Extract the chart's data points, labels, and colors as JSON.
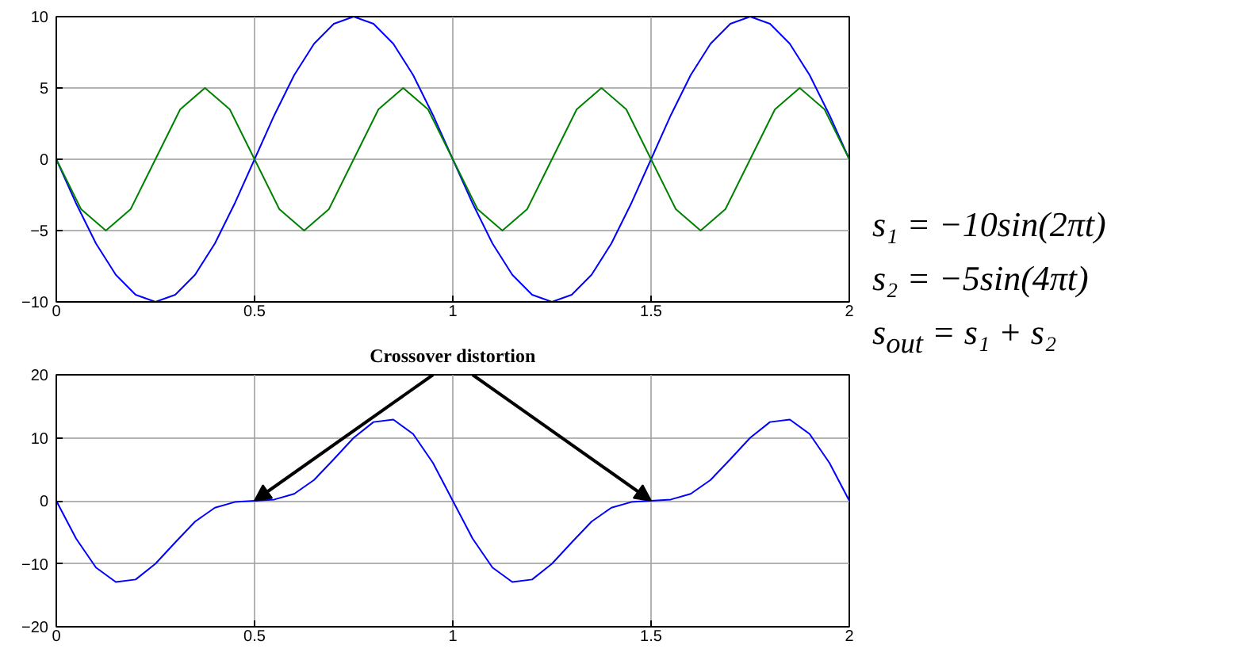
{
  "chart_data": [
    {
      "type": "line",
      "xlim": [
        0,
        2
      ],
      "xticks": [
        0,
        0.5,
        1,
        {
          "value": 1.5,
          "label": "1.5"
        },
        2
      ],
      "ylim": [
        -10,
        10
      ],
      "yticks": [
        -10,
        -5,
        0,
        5,
        10
      ],
      "grid": true,
      "series": [
        {
          "color": "#0000ff",
          "x": [
            0,
            0.05,
            0.1,
            0.15,
            0.2,
            0.25,
            0.3,
            0.35,
            0.4,
            0.45,
            0.5,
            0.55,
            0.6,
            0.65,
            0.7,
            0.75,
            0.8,
            0.85,
            0.9,
            0.95,
            1,
            1.05,
            1.1,
            1.15,
            1.2,
            1.25,
            1.3,
            1.35,
            1.4,
            1.45,
            1.5,
            1.55,
            1.6,
            1.65,
            1.7,
            1.75,
            1.8,
            1.85,
            1.9,
            1.95,
            2
          ],
          "values": [
            0,
            -3.1,
            -5.9,
            -8.1,
            -9.5,
            -10,
            -9.5,
            -8.1,
            -5.9,
            -3.1,
            0,
            3.1,
            5.9,
            8.1,
            9.5,
            10,
            9.5,
            8.1,
            5.9,
            3.1,
            0,
            -3.1,
            -5.9,
            -8.1,
            -9.5,
            -10,
            -9.5,
            -8.1,
            -5.9,
            -3.1,
            0,
            3.1,
            5.9,
            8.1,
            9.5,
            10,
            9.5,
            8.1,
            5.9,
            3.1,
            0
          ]
        },
        {
          "color": "#008000",
          "x": [
            0,
            0.0625,
            0.125,
            0.1875,
            0.25,
            0.3125,
            0.375,
            0.4375,
            0.5,
            0.5625,
            0.625,
            0.6875,
            0.75,
            0.8125,
            0.875,
            0.9375,
            1,
            1.0625,
            1.125,
            1.1875,
            1.25,
            1.3125,
            1.375,
            1.4375,
            1.5,
            1.5625,
            1.625,
            1.6875,
            1.75,
            1.8125,
            1.875,
            1.9375,
            2
          ],
          "values": [
            0,
            -3.5,
            -5,
            -3.5,
            0,
            3.5,
            5,
            3.5,
            0,
            -3.5,
            -5,
            -3.5,
            0,
            3.5,
            5,
            3.5,
            0,
            -3.5,
            -5,
            -3.5,
            0,
            3.5,
            5,
            3.5,
            0,
            -3.5,
            -5,
            -3.5,
            0,
            3.5,
            5,
            3.5,
            0
          ]
        }
      ],
      "annotations": [
        "s₁ = −10sin(2πt)",
        "s₂ = −5sin(4πt)",
        "s$_{out}$ = s₁ + s₂"
      ]
    },
    {
      "type": "line",
      "xlim": [
        0,
        2
      ],
      "xticks": [
        0,
        0.5,
        1,
        {
          "value": 1.5,
          "label": "1.5"
        },
        2
      ],
      "ylim": [
        -20,
        20
      ],
      "yticks": [
        -20,
        -10,
        0,
        10,
        20
      ],
      "grid": true,
      "series": [
        {
          "color": "#0000ff",
          "x": [
            0,
            0.05,
            0.1,
            0.15,
            0.2,
            0.25,
            0.3,
            0.35,
            0.4,
            0.45,
            0.5,
            0.55,
            0.6,
            0.65,
            0.7,
            0.75,
            0.8,
            0.85,
            0.9,
            0.95,
            1,
            1.05,
            1.1,
            1.15,
            1.2,
            1.25,
            1.3,
            1.35,
            1.4,
            1.45,
            1.5,
            1.55,
            1.6,
            1.65,
            1.7,
            1.75,
            1.8,
            1.85,
            1.9,
            1.95,
            2
          ],
          "values": [
            0,
            -6,
            -10.6,
            -12.9,
            -12.5,
            -10,
            -6.6,
            -3.3,
            -1.1,
            -0.2,
            0,
            0.2,
            1.1,
            3.3,
            6.6,
            10,
            12.5,
            12.9,
            10.6,
            6,
            0,
            -6,
            -10.6,
            -12.9,
            -12.5,
            -10,
            -6.6,
            -3.3,
            -1.1,
            -0.2,
            0,
            0.2,
            1.1,
            3.3,
            6.6,
            10,
            12.5,
            12.9,
            10.6,
            6,
            0
          ]
        }
      ],
      "annotations": [
        {
          "text": "Crossover distortion",
          "x": 0.5,
          "y": 0
        }
      ]
    }
  ]
}
